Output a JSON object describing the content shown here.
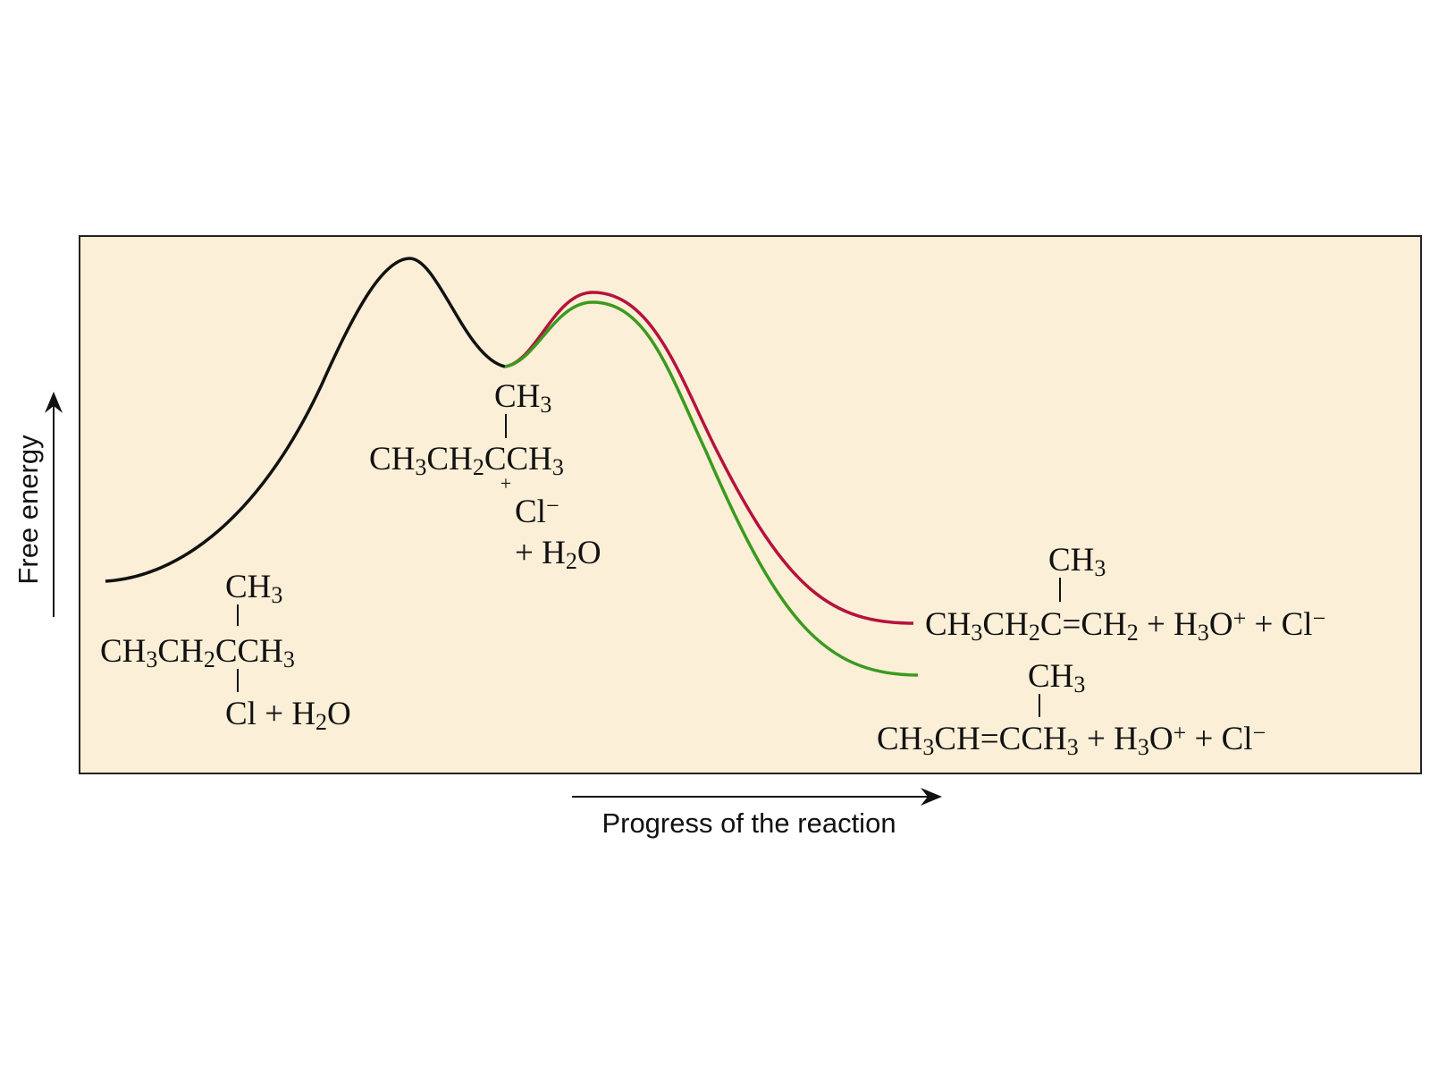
{
  "axes": {
    "y_label": "Free energy",
    "x_label": "Progress of the reaction"
  },
  "reactant": {
    "branch": "CH3",
    "chain": "CH3CH2CCH3",
    "below": "Cl + H2O"
  },
  "intermediate": {
    "branch": "CH3",
    "chain": "CH3CH2CCH3",
    "charge": "+",
    "counter_ion": "Cl−",
    "water": "+ H2O"
  },
  "product_1": {
    "branch": "CH3",
    "formula": "CH3CH2C=CH2 + H3O+ + Cl−"
  },
  "product_2": {
    "branch": "CH3",
    "formula": "CH3CH=CCH3 + H3O+ + Cl−"
  }
}
